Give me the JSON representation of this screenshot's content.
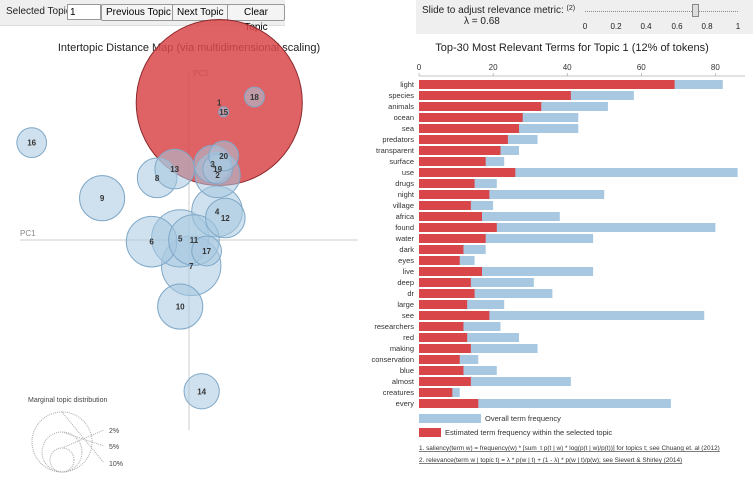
{
  "controls": {
    "selected_label": "Selected Topic:",
    "selected_value": "1",
    "prev_label": "Previous Topic",
    "next_label": "Next Topic",
    "clear_label": "Clear Topic"
  },
  "slider": {
    "title": "Slide to adjust relevance metric:",
    "ref": "(2)",
    "lambda_label": "λ = 0.68",
    "value": 0.68,
    "ticks": [
      "0",
      "0.2",
      "0.4",
      "0.6",
      "0.8",
      "1"
    ]
  },
  "left_title": "Intertopic Distance Map (via multidimensional scaling)",
  "right_title": "Top-30 Most Relevant Terms for Topic 1 (12% of tokens)",
  "chart_data": [
    {
      "type": "scatter",
      "title": "Intertopic Distance Map (via multidimensional scaling)",
      "xlabel": "PC1",
      "ylabel": "PC2",
      "selected_topic": 1,
      "colors": {
        "bubble": "#a7c8e0",
        "bubble_stroke": "#7fa8c8",
        "selected": "#d9464a"
      },
      "topics": [
        {
          "label": "1",
          "x": 0.055,
          "y": 0.25,
          "r": 0.151
        },
        {
          "label": "2",
          "x": 0.052,
          "y": 0.118,
          "r": 0.041
        },
        {
          "label": "3",
          "x": 0.043,
          "y": 0.138,
          "r": 0.034
        },
        {
          "label": "4",
          "x": 0.051,
          "y": 0.052,
          "r": 0.046
        },
        {
          "label": "5",
          "x": -0.016,
          "y": 0.003,
          "r": 0.052
        },
        {
          "label": "6",
          "x": -0.068,
          "y": -0.003,
          "r": 0.046
        },
        {
          "label": "7",
          "x": 0.004,
          "y": -0.047,
          "r": 0.054
        },
        {
          "label": "8",
          "x": -0.058,
          "y": 0.113,
          "r": 0.036
        },
        {
          "label": "9",
          "x": -0.158,
          "y": 0.076,
          "r": 0.041
        },
        {
          "label": "10",
          "x": -0.016,
          "y": -0.121,
          "r": 0.041
        },
        {
          "label": "11",
          "x": 0.009,
          "y": 0.0,
          "r": 0.046
        },
        {
          "label": "12",
          "x": 0.066,
          "y": 0.04,
          "r": 0.036
        },
        {
          "label": "13",
          "x": -0.026,
          "y": 0.129,
          "r": 0.036
        },
        {
          "label": "14",
          "x": 0.023,
          "y": -0.275,
          "r": 0.032
        },
        {
          "label": "15",
          "x": 0.063,
          "y": 0.233,
          "r": 0.009
        },
        {
          "label": "16",
          "x": -0.286,
          "y": 0.177,
          "r": 0.027
        },
        {
          "label": "17",
          "x": 0.032,
          "y": -0.02,
          "r": 0.027
        },
        {
          "label": "18",
          "x": 0.119,
          "y": 0.26,
          "r": 0.018
        },
        {
          "label": "19",
          "x": 0.052,
          "y": 0.129,
          "r": 0.027
        },
        {
          "label": "20",
          "x": 0.063,
          "y": 0.153,
          "r": 0.027
        }
      ],
      "marginal": {
        "title": "Marginal topic distribution",
        "labels": [
          "2%",
          "5%",
          "10%"
        ]
      }
    },
    {
      "type": "bar",
      "title": "Top-30 Most Relevant Terms for Topic 1 (12% of tokens)",
      "orientation": "horizontal",
      "xlim": [
        0,
        88
      ],
      "xticks": [
        "0",
        "20",
        "40",
        "60",
        "80"
      ],
      "colors": {
        "overall": "#a7c8e0",
        "estimated": "#d9464a"
      },
      "categories": [
        "light",
        "species",
        "animals",
        "ocean",
        "sea",
        "predators",
        "transparent",
        "surface",
        "use",
        "drugs",
        "night",
        "village",
        "africa",
        "found",
        "water",
        "dark",
        "eyes",
        "live",
        "deep",
        "dr",
        "large",
        "see",
        "researchers",
        "red",
        "making",
        "conservation",
        "blue",
        "almost",
        "creatures",
        "every"
      ],
      "series": [
        {
          "name": "Overall term frequency",
          "values": [
            82,
            58,
            51,
            43,
            43,
            32,
            27,
            23,
            86,
            21,
            50,
            20,
            38,
            80,
            47,
            18,
            15,
            47,
            31,
            36,
            23,
            77,
            22,
            27,
            32,
            16,
            21,
            41,
            11,
            68
          ]
        },
        {
          "name": "Estimated term frequency within the selected topic",
          "values": [
            69,
            41,
            33,
            28,
            27,
            24,
            22,
            18,
            26,
            15,
            19,
            14,
            17,
            21,
            18,
            12,
            11,
            17,
            14,
            15,
            13,
            19,
            12,
            13,
            14,
            11,
            12,
            14,
            9,
            16
          ]
        }
      ]
    }
  ],
  "legend": {
    "overall": "Overall term frequency",
    "estimated": "Estimated term frequency within the selected topic"
  },
  "footnotes": [
    "1. saliency(term w) = frequency(w) * [sum_t p(t | w) * log(p(t | w)/p(t))] for topics t; see Chuang et. al (2012)",
    "2. relevance(term w | topic t) = λ * p(w | t) + (1 - λ) * p(w | t)/p(w); see Sievert & Shirley (2014)"
  ]
}
